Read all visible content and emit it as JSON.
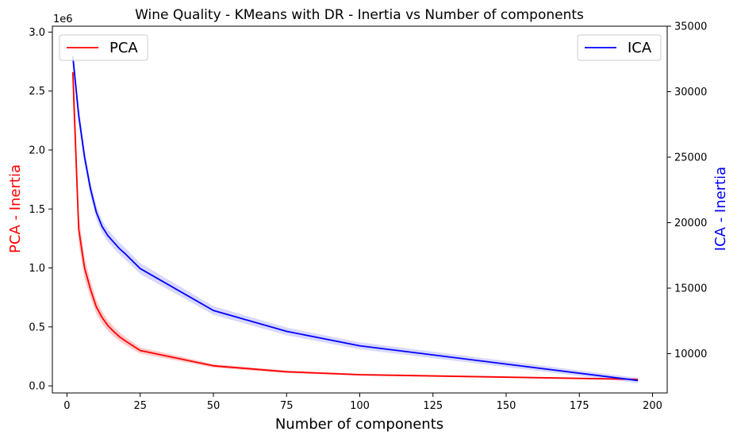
{
  "chart_data": {
    "type": "line",
    "title": "Wine Quality - KMeans with DR - Inertia vs Number of components",
    "xlabel": "Number of components",
    "ylabel_left": "PCA - Inertia",
    "ylabel_right": "ICA - Inertia",
    "left_scale_label": "1e6",
    "xlim": [
      -5,
      205
    ],
    "ylim_left": [
      -60000,
      3050000
    ],
    "ylim_right": [
      7000,
      35000
    ],
    "x_ticks": [
      0,
      25,
      50,
      75,
      100,
      125,
      150,
      175,
      200
    ],
    "y_left_ticks": [
      0,
      0.5,
      1.0,
      1.5,
      2.0,
      2.5,
      3.0
    ],
    "y_left_tick_labels": [
      "0.0",
      "0.5",
      "1.0",
      "1.5",
      "2.0",
      "2.5",
      "3.0"
    ],
    "y_right_ticks": [
      10000,
      15000,
      20000,
      25000,
      30000,
      35000
    ],
    "grid": false,
    "series": [
      {
        "name": "PCA",
        "axis": "left",
        "color": "#ff0000",
        "band_color": "#ffb3b3",
        "legend": "top-left",
        "x": [
          2,
          4,
          6,
          8,
          10,
          12,
          14,
          16,
          18,
          20,
          25,
          50,
          75,
          100,
          195
        ],
        "y": [
          2660000,
          1330000,
          1000000,
          820000,
          670000,
          580000,
          510000,
          460000,
          415000,
          380000,
          300000,
          170000,
          120000,
          95000,
          55000
        ],
        "band": 0.09
      },
      {
        "name": "ICA",
        "axis": "right",
        "color": "#0000ff",
        "band_color": "#c8c8ff",
        "legend": "top-right",
        "x": [
          2,
          4,
          6,
          8,
          10,
          12,
          14,
          16,
          18,
          20,
          25,
          50,
          75,
          100,
          195
        ],
        "y": [
          32700,
          28200,
          25000,
          22600,
          20800,
          19700,
          19000,
          18500,
          18000,
          17600,
          16500,
          13300,
          11700,
          10600,
          7950
        ],
        "band": 0.025
      }
    ]
  }
}
